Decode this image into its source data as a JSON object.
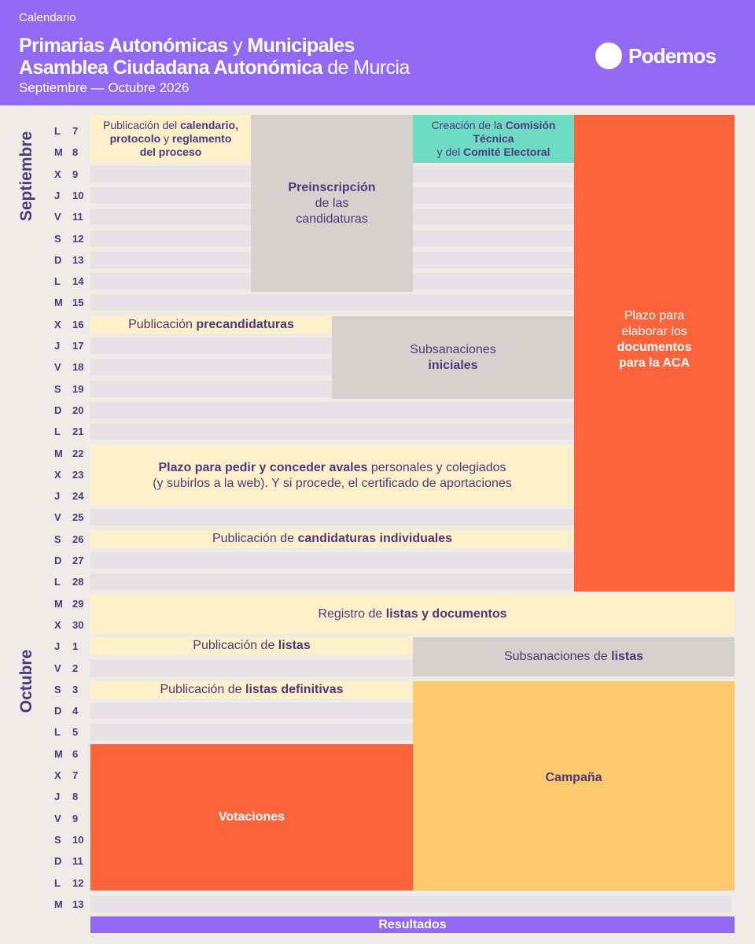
{
  "header": {
    "kicker": "Calendario",
    "line1_bold_a": "Primarias Autonómicas",
    "line1_light": "y",
    "line1_bold_b": "Municipales",
    "line2_bold": "Asamblea Ciudadana Autonómica",
    "line2_light": "de Murcia",
    "date_range": "Septiembre — Octubre 2026",
    "logo_icon": "circle-logo-icon",
    "logo_text": "Podemos"
  },
  "colors": {
    "header_bg": "#9169f2",
    "text": "#4b3a7e",
    "cream": "#fff0c9",
    "grey": "#d6d1cd",
    "teal": "#6ddcc2",
    "orange": "#fd643c",
    "gold": "#fec86f",
    "background": "#efebe6"
  },
  "months": {
    "september": "Septiembre",
    "october": "Octubre"
  },
  "days": [
    {
      "wd": "L",
      "n": "7"
    },
    {
      "wd": "M",
      "n": "8"
    },
    {
      "wd": "X",
      "n": "9"
    },
    {
      "wd": "J",
      "n": "10"
    },
    {
      "wd": "V",
      "n": "11"
    },
    {
      "wd": "S",
      "n": "12"
    },
    {
      "wd": "D",
      "n": "13"
    },
    {
      "wd": "L",
      "n": "14"
    },
    {
      "wd": "M",
      "n": "15"
    },
    {
      "wd": "X",
      "n": "16"
    },
    {
      "wd": "J",
      "n": "17"
    },
    {
      "wd": "V",
      "n": "18"
    },
    {
      "wd": "S",
      "n": "19"
    },
    {
      "wd": "D",
      "n": "20"
    },
    {
      "wd": "L",
      "n": "21"
    },
    {
      "wd": "M",
      "n": "22"
    },
    {
      "wd": "X",
      "n": "23"
    },
    {
      "wd": "J",
      "n": "24"
    },
    {
      "wd": "V",
      "n": "25"
    },
    {
      "wd": "S",
      "n": "26"
    },
    {
      "wd": "D",
      "n": "27"
    },
    {
      "wd": "L",
      "n": "28"
    },
    {
      "wd": "M",
      "n": "29"
    },
    {
      "wd": "X",
      "n": "30"
    },
    {
      "wd": "J",
      "n": "1"
    },
    {
      "wd": "V",
      "n": "2"
    },
    {
      "wd": "S",
      "n": "3"
    },
    {
      "wd": "D",
      "n": "4"
    },
    {
      "wd": "L",
      "n": "5"
    },
    {
      "wd": "M",
      "n": "6"
    },
    {
      "wd": "X",
      "n": "7"
    },
    {
      "wd": "J",
      "n": "8"
    },
    {
      "wd": "V",
      "n": "9"
    },
    {
      "wd": "S",
      "n": "10"
    },
    {
      "wd": "D",
      "n": "11"
    },
    {
      "wd": "L",
      "n": "12"
    },
    {
      "wd": "M",
      "n": "13"
    }
  ],
  "events": {
    "calendario": {
      "p1": "Publicación del ",
      "b1": "calendario,",
      "b2": "protocolo",
      "p2": " y ",
      "b3": "reglamento",
      "b4": "del proceso"
    },
    "preinscripcion": {
      "b1": "Preinscripción",
      "p1": "de las",
      "p2": "candidaturas"
    },
    "comision": {
      "p1": "Creación de la ",
      "b1": "Comisión",
      "b2": "Técnica",
      "p2": "y del ",
      "b3": "Comité Electoral"
    },
    "plazo_docs": {
      "p1": "Plazo para",
      "p2": "elaborar los",
      "b1": "documentos",
      "b2": "para la ACA"
    },
    "precandidaturas": {
      "p1": "Publicación ",
      "b1": "precandidaturas"
    },
    "subsanaciones_iniciales": {
      "p1": "Subsanaciones",
      "b1": "iniciales"
    },
    "avales": {
      "b1": "Plazo para pedir y conceder avales",
      "p1": " personales y colegiados",
      "p2": "(y subirlos a la web). Y si procede, el certificado de aportaciones"
    },
    "candidaturas_individuales": {
      "p1": "Publicación de ",
      "b1": "candidaturas individuales"
    },
    "registro": {
      "p1": "Registro de ",
      "b1": "listas y documentos"
    },
    "publicacion_listas": {
      "p1": "Publicación de ",
      "b1": "listas"
    },
    "subsanaciones_listas": {
      "p1": "Subsanaciones de ",
      "b1": "listas"
    },
    "listas_definitivas": {
      "p1": "Publicación de ",
      "b1": "listas definitivas"
    },
    "votaciones": {
      "b1": "Votaciones"
    },
    "campana": {
      "b1": "Campaña"
    },
    "resultados": {
      "b1": "Resultados"
    }
  }
}
